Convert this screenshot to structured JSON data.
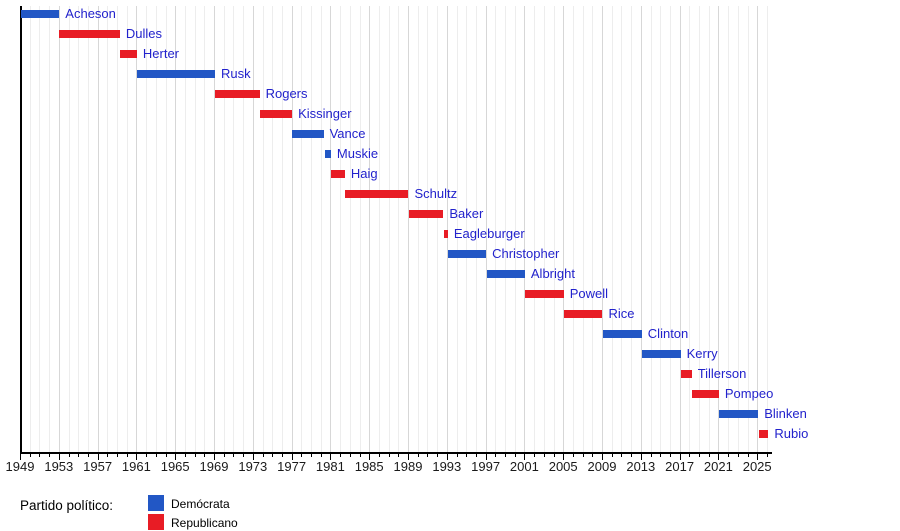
{
  "chart_data": {
    "type": "bar",
    "subtype": "timeline-gantt",
    "title": "",
    "x_axis": {
      "min": 1949,
      "max": 2026.5,
      "tick_step": 4,
      "minor_step": 1,
      "tick_labels": [
        "1949",
        "1953",
        "1957",
        "1961",
        "1965",
        "1969",
        "1973",
        "1977",
        "1981",
        "1985",
        "1989",
        "1993",
        "1997",
        "2001",
        "2005",
        "2009",
        "2013",
        "2017",
        "2021",
        "2025"
      ]
    },
    "terms": [
      {
        "name": "Acheson",
        "party": "Demócrata",
        "start": 1949.05,
        "end": 1953.05
      },
      {
        "name": "Dulles",
        "party": "Republicano",
        "start": 1953.05,
        "end": 1959.3
      },
      {
        "name": "Herter",
        "party": "Republicano",
        "start": 1959.3,
        "end": 1961.05
      },
      {
        "name": "Rusk",
        "party": "Demócrata",
        "start": 1961.05,
        "end": 1969.1
      },
      {
        "name": "Rogers",
        "party": "Republicano",
        "start": 1969.1,
        "end": 1973.7
      },
      {
        "name": "Kissinger",
        "party": "Republicano",
        "start": 1973.7,
        "end": 1977.05
      },
      {
        "name": "Vance",
        "party": "Demócrata",
        "start": 1977.05,
        "end": 1980.3
      },
      {
        "name": "Muskie",
        "party": "Demócrata",
        "start": 1980.4,
        "end": 1981.05
      },
      {
        "name": "Haig",
        "party": "Republicano",
        "start": 1981.1,
        "end": 1982.5
      },
      {
        "name": "Schultz",
        "party": "Republicano",
        "start": 1982.55,
        "end": 1989.05
      },
      {
        "name": "Baker",
        "party": "Republicano",
        "start": 1989.1,
        "end": 1992.65
      },
      {
        "name": "Eagleburger",
        "party": "Republicano",
        "start": 1992.7,
        "end": 1993.05
      },
      {
        "name": "Christopher",
        "party": "Demócrata",
        "start": 1993.1,
        "end": 1997.05
      },
      {
        "name": "Albright",
        "party": "Demócrata",
        "start": 1997.1,
        "end": 2001.05
      },
      {
        "name": "Powell",
        "party": "Republicano",
        "start": 2001.1,
        "end": 2005.05
      },
      {
        "name": "Rice",
        "party": "Republicano",
        "start": 2005.1,
        "end": 2009.05
      },
      {
        "name": "Clinton",
        "party": "Demócrata",
        "start": 2009.1,
        "end": 2013.1
      },
      {
        "name": "Kerry",
        "party": "Demócrata",
        "start": 2013.1,
        "end": 2017.1
      },
      {
        "name": "Tillerson",
        "party": "Republicano",
        "start": 2017.1,
        "end": 2018.25
      },
      {
        "name": "Pompeo",
        "party": "Republicano",
        "start": 2018.3,
        "end": 2021.05
      },
      {
        "name": "Blinken",
        "party": "Demócrata",
        "start": 2021.1,
        "end": 2025.1
      },
      {
        "name": "Rubio",
        "party": "Republicano",
        "start": 2025.15,
        "end": 2026.15
      }
    ],
    "colors": {
      "Demócrata": "#2257c5",
      "Republicano": "#e81c25",
      "label_text": "#2222cc",
      "grid_minor": "#ededed",
      "grid_major": "#d7d7d7",
      "axis": "#000000"
    },
    "legend_position": "bottom-left",
    "grid": true
  },
  "legend": {
    "title": "Partido político:",
    "entries": [
      {
        "label": "Demócrata",
        "color": "#2257c5"
      },
      {
        "label": "Republicano",
        "color": "#e81c25"
      }
    ]
  }
}
